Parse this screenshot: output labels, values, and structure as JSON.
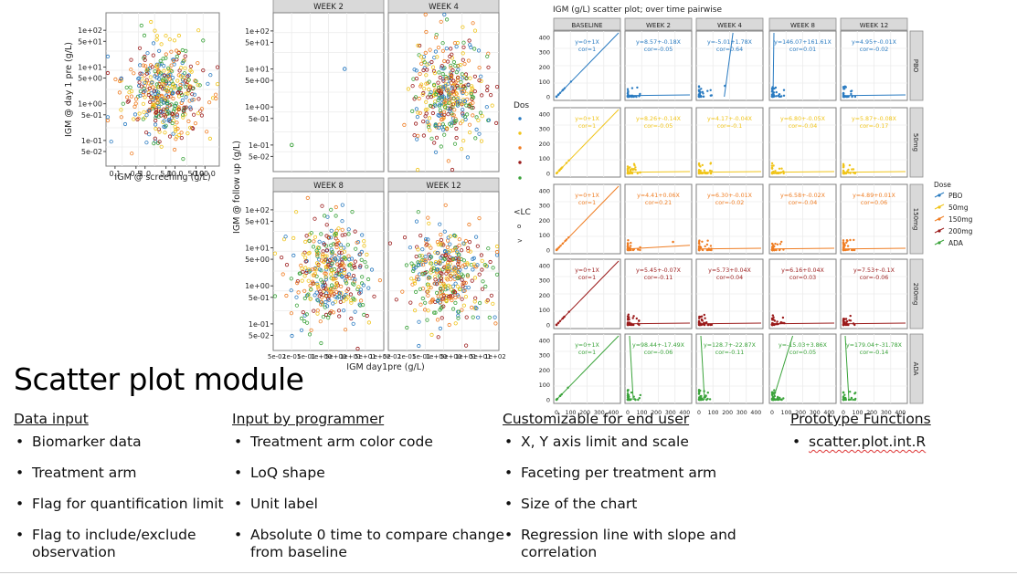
{
  "slide": {
    "title": "Scatter plot module",
    "columns": [
      {
        "header": "Data input",
        "items": [
          "Biomarker data",
          "Treatment arm",
          "Flag for quantification limit",
          "Flag to include/exclude observation"
        ]
      },
      {
        "header": "Input by programmer",
        "items": [
          "Treatment arm color code",
          "LoQ shape",
          "Unit label",
          "Absolute 0 time to compare change from baseline"
        ]
      },
      {
        "header": "Customizable for end user",
        "items": [
          "X, Y axis limit and scale",
          "Faceting per treatment arm",
          "Size of the chart",
          "Regression line with slope and correlation"
        ]
      },
      {
        "header": "Prototype Functions",
        "items": [
          "scatter.plot.int.R"
        ]
      }
    ]
  },
  "chart_data": [
    {
      "type": "scatter",
      "xlabel": "IGM @ screening (g/L)",
      "ylabel": "IGM @ day 1 pre (g/L)",
      "x_scale": "log",
      "y_scale": "log",
      "x_ticks": [
        "0.1",
        "0.5",
        "1.0",
        "5.0",
        "10.0",
        "50.0",
        "100.0"
      ],
      "y_ticks": [
        "1e+02",
        "5e+01",
        "1e+01",
        "5e+00",
        "1e+00",
        "5e-01",
        "1e-01",
        "5e-02"
      ],
      "points": "~500 log-normally scattered points centered near 5 g/L, colored by dose group"
    },
    {
      "type": "scatter",
      "panels": [
        "WEEK 2",
        "WEEK 4",
        "WEEK 8",
        "WEEK 12"
      ],
      "xlabel": "IGM day1pre (g/L)",
      "ylabel": "IGM @ follow up (g/L)",
      "x_scale": "log",
      "y_scale": "log",
      "y_ticks": [
        "1e+02",
        "5e+01",
        "1e+01",
        "5e+00",
        "1e+00",
        "5e-01",
        "1e-01",
        "5e-02"
      ],
      "x_ticks": [
        "5e-02",
        "1e-01",
        "5e-01",
        "1e+00",
        "5e+00",
        "1e+01",
        "5e+01",
        "1e+02"
      ],
      "week2_points": [
        {
          "x": 0.1,
          "y": 0.1
        },
        {
          "x": 10,
          "y": 10
        }
      ]
    },
    {
      "type": "scatter",
      "title": "IGM (g/L) scatter plot; over time pairwise",
      "columns": [
        "BASELINE",
        "WEEK 2",
        "WEEK 4",
        "WEEK 8",
        "WEEK 12"
      ],
      "rows": [
        "PBO",
        "50mg",
        "150mg",
        "200mg",
        "ADA"
      ],
      "y_ticks": [
        0,
        100,
        200,
        300,
        400
      ],
      "x_ticks": [
        0,
        100,
        200,
        300,
        400
      ],
      "annotations": [
        [
          "y=0+1X\ncor=1",
          "y=8.57+-0.18X\ncor=-0.05",
          "y=-5.01+1.78X\ncor=0.64",
          "y=146.07+161.61X\ncor=0.01",
          "y=4.95+-0.01X\ncor=-0.02"
        ],
        [
          "y=0+1X\ncor=1",
          "y=8.26+-0.14X\ncor=-0.05",
          "y=4.17+-0.04X\ncor=-0.1",
          "y=6.80+-0.05X\ncor=-0.04",
          "y=5.87+-0.08X\ncor=-0.17"
        ],
        [
          "y=0+1X\ncor=1",
          "y=4.41+0.06X\ncor=0.21",
          "y=6.30+-0.01X\ncor=-0.02",
          "y=6.58+-0.02X\ncor=-0.04",
          "y=4.89+0.01X\ncor=0.06"
        ],
        [
          "y=0+1X\ncor=1",
          "y=5.45+-0.07X\ncor=-0.11",
          "y=5.73+0.04X\ncor=0.04",
          "y=6.16+0.04X\ncor=0.03",
          "y=7.53+-0.1X\ncor=-0.06"
        ],
        [
          "y=0+1X\ncor=1",
          "y=98.44+-17.49X\ncor=-0.06",
          "y=128.7+-22.87X\ncor=-0.11",
          "y=-15.03+3.86X\ncor=0.05",
          "y=179.04+-31.78X\ncor=-0.14"
        ]
      ],
      "legend": {
        "title": "Dose",
        "position": "right",
        "entries": [
          {
            "name": "PBO",
            "color": "#2a7bc1"
          },
          {
            "name": "50mg",
            "color": "#f0c419"
          },
          {
            "name": "150mg",
            "color": "#ef7d23"
          },
          {
            "name": "200mg",
            "color": "#9b1b1b"
          },
          {
            "name": "ADA",
            "color": "#3aa33a"
          }
        ]
      },
      "partial_legend": {
        "title": "Dos",
        "loq_title": "<LC",
        "loq_items": [
          "o",
          ">"
        ]
      }
    }
  ]
}
